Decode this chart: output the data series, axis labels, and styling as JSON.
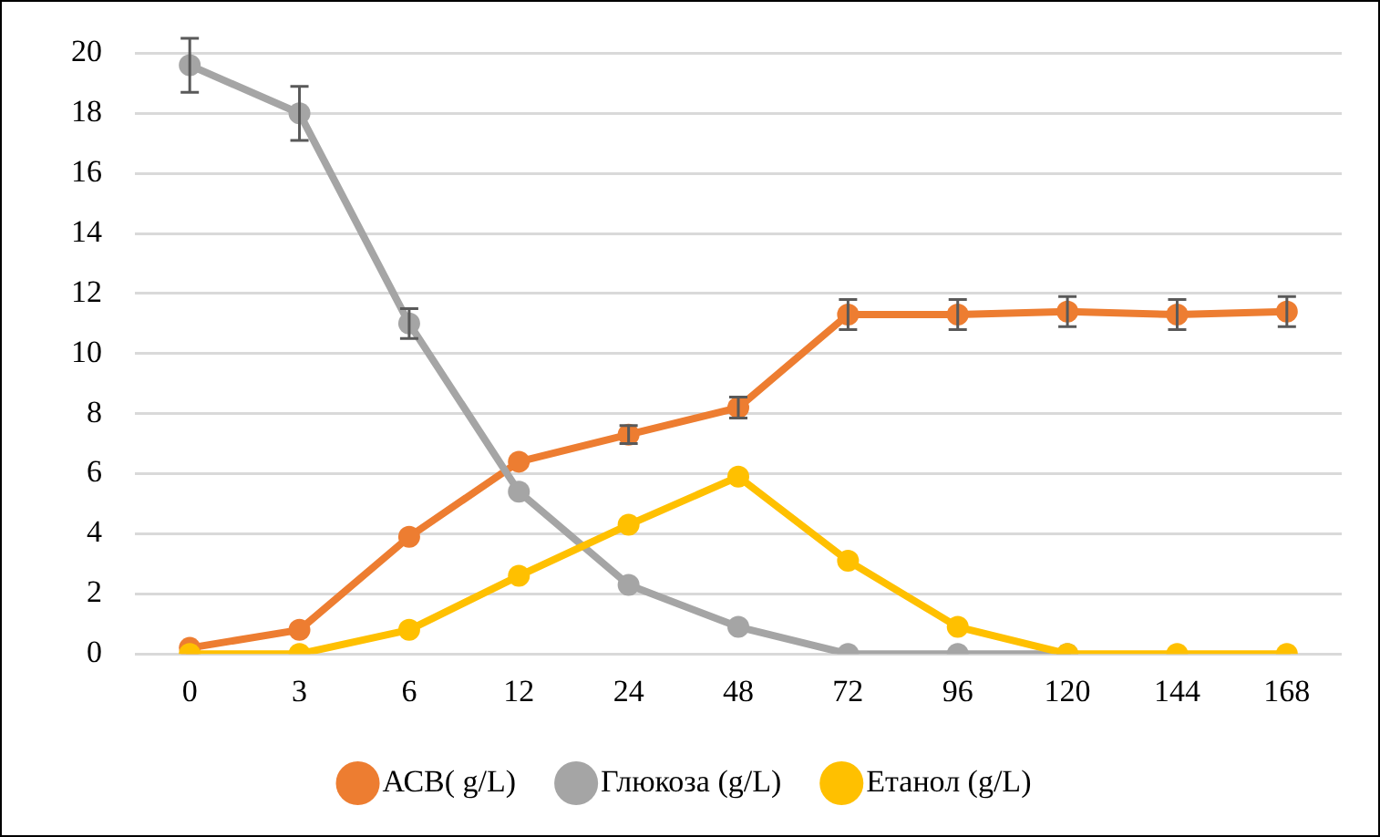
{
  "chart_data": {
    "type": "line",
    "categories": [
      "0",
      "3",
      "6",
      "12",
      "24",
      "48",
      "72",
      "96",
      "120",
      "144",
      "168"
    ],
    "series": [
      {
        "name": "АСВ( g/L)",
        "color": "#ed7d31",
        "values": [
          0.2,
          0.8,
          3.9,
          6.4,
          7.3,
          8.2,
          11.3,
          11.3,
          11.4,
          11.3,
          11.4
        ],
        "errors": [
          null,
          null,
          null,
          null,
          0.3,
          0.35,
          0.5,
          0.5,
          0.5,
          0.5,
          0.5
        ]
      },
      {
        "name": "Глюкоза (g/L)",
        "color": "#a5a5a5",
        "values": [
          19.6,
          18.0,
          11.0,
          5.4,
          2.3,
          0.9,
          0,
          0,
          0,
          null,
          null
        ],
        "errors": [
          0.9,
          0.9,
          0.5,
          null,
          null,
          null,
          null,
          null,
          null,
          null,
          null
        ]
      },
      {
        "name": "Етанол (g/L)",
        "color": "#ffc000",
        "values": [
          0,
          0,
          0.8,
          2.6,
          4.3,
          5.9,
          3.1,
          0.9,
          0,
          0,
          0
        ]
      }
    ],
    "ylim": [
      0,
      20
    ],
    "yticks": [
      0,
      2,
      4,
      6,
      8,
      10,
      12,
      14,
      16,
      18,
      20
    ],
    "grid": "y",
    "legend": "bottom",
    "marker": "circle",
    "line_style": "solid"
  }
}
